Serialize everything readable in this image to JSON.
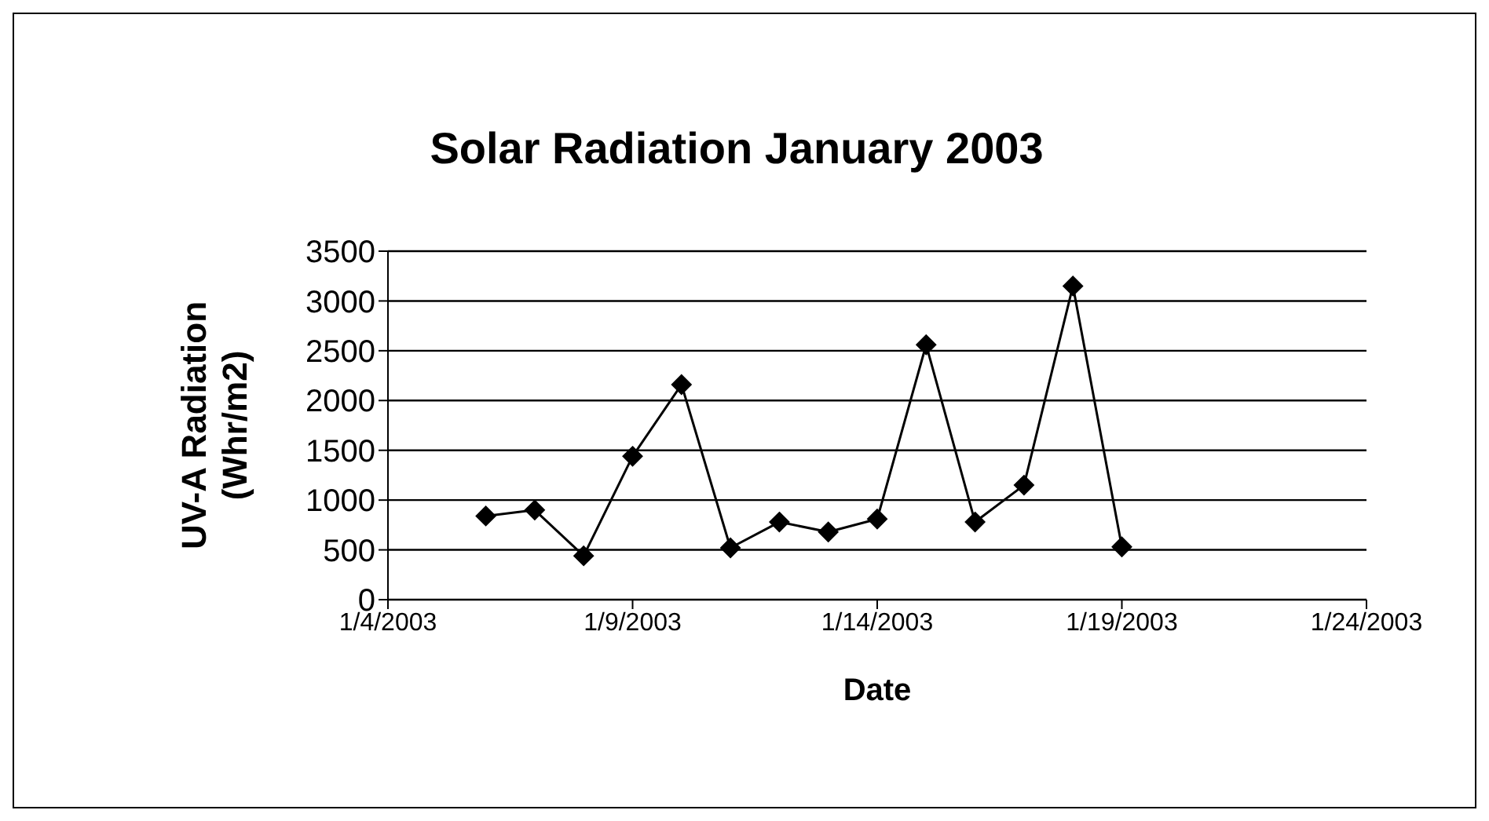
{
  "chart_data": {
    "type": "line",
    "title": "Solar Radiation January 2003",
    "xlabel": "Date",
    "ylabel": "UV-A Radiation (Whr/m2)",
    "x": [
      "2003-01-06",
      "2003-01-07",
      "2003-01-08",
      "2003-01-09",
      "2003-01-10",
      "2003-01-11",
      "2003-01-12",
      "2003-01-13",
      "2003-01-14",
      "2003-01-15",
      "2003-01-16",
      "2003-01-17",
      "2003-01-18",
      "2003-01-19"
    ],
    "series": [
      {
        "color": "#000000",
        "values": [
          840,
          900,
          440,
          1440,
          2160,
          520,
          780,
          680,
          810,
          2560,
          780,
          1150,
          3150,
          530
        ]
      }
    ],
    "xlim": [
      "2003-01-04",
      "2003-01-24"
    ],
    "xticks": [
      {
        "value": "2003-01-04",
        "label": "1/4/2003"
      },
      {
        "value": "2003-01-09",
        "label": "1/9/2003"
      },
      {
        "value": "2003-01-14",
        "label": "1/14/2003"
      },
      {
        "value": "2003-01-19",
        "label": "1/19/2003"
      },
      {
        "value": "2003-01-24",
        "label": "1/24/2003"
      }
    ],
    "ylim": [
      0,
      3500
    ],
    "yticks": [
      0,
      500,
      1000,
      1500,
      2000,
      2500,
      3000,
      3500
    ],
    "grid": "y",
    "marker": "diamond",
    "line_style": "solid"
  }
}
